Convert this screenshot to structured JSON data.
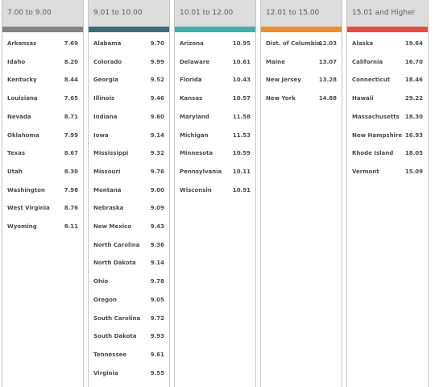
{
  "columns": [
    {
      "header": "7.00 to 9.00",
      "color": "#848484",
      "rows": [
        {
          "state": "Arkansas",
          "value": "7.69"
        },
        {
          "state": "Idaho",
          "value": "8.20"
        },
        {
          "state": "Kentucky",
          "value": "8.44"
        },
        {
          "state": "Louisiana",
          "value": "7.65"
        },
        {
          "state": "Nevada",
          "value": "8.71"
        },
        {
          "state": "Oklahoma",
          "value": "7.99"
        },
        {
          "state": "Texas",
          "value": "8.67"
        },
        {
          "state": "Utah",
          "value": "8.30"
        },
        {
          "state": "Washington",
          "value": "7.98"
        },
        {
          "state": "West Virginia",
          "value": "8.76"
        },
        {
          "state": "Wyoming",
          "value": "8.11"
        }
      ]
    },
    {
      "header": "9.01 to 10.00",
      "color": "#3e6b78",
      "rows": [
        {
          "state": "Alabama",
          "value": "9.70"
        },
        {
          "state": "Colorado",
          "value": "9.99"
        },
        {
          "state": "Georgia",
          "value": "9.52"
        },
        {
          "state": "Illinois",
          "value": "9.46"
        },
        {
          "state": "Indiana",
          "value": "9.60"
        },
        {
          "state": "Iowa",
          "value": "9.14"
        },
        {
          "state": "Mississippi",
          "value": "9.32"
        },
        {
          "state": "Missouri",
          "value": "9.76"
        },
        {
          "state": "Montana",
          "value": "9.00"
        },
        {
          "state": "Nebraska",
          "value": "9.09"
        },
        {
          "state": "New Mexico",
          "value": "9.43"
        },
        {
          "state": "North Carolina",
          "value": "9.36"
        },
        {
          "state": "North Dakota",
          "value": "9.14"
        },
        {
          "state": "Ohio",
          "value": "9.78"
        },
        {
          "state": "Oregon",
          "value": "9.05"
        },
        {
          "state": "South Carolina",
          "value": "9.72"
        },
        {
          "state": "South Dakota",
          "value": "9.93"
        },
        {
          "state": "Tennessee",
          "value": "9.61"
        },
        {
          "state": "Virginia",
          "value": "9.55"
        }
      ]
    },
    {
      "header": "10.01 to 12.00",
      "color": "#3bb0aa",
      "rows": [
        {
          "state": "Arizona",
          "value": "10.95"
        },
        {
          "state": "Delaware",
          "value": "10.61"
        },
        {
          "state": "Florida",
          "value": "10.43"
        },
        {
          "state": "Kansas",
          "value": "10.57"
        },
        {
          "state": "Maryland",
          "value": "11.58"
        },
        {
          "state": "Michigan",
          "value": "11.53"
        },
        {
          "state": "Minnesota",
          "value": "10.59"
        },
        {
          "state": "Pennsylvania",
          "value": "10.11"
        },
        {
          "state": "Wisconsin",
          "value": "10.91"
        }
      ]
    },
    {
      "header": "12.01 to 15.00",
      "color": "#e8922f",
      "rows": [
        {
          "state": "Dist. of Columbia",
          "value": "12.03"
        },
        {
          "state": "Maine",
          "value": "13.07"
        },
        {
          "state": "New Jersey",
          "value": "13.28"
        },
        {
          "state": "New York",
          "value": "14.88"
        }
      ]
    },
    {
      "header": "15.01 and Higher",
      "color": "#e84b42",
      "rows": [
        {
          "state": "Alaska",
          "value": "19.64"
        },
        {
          "state": "California",
          "value": "16.70"
        },
        {
          "state": "Connecticut",
          "value": "18.46"
        },
        {
          "state": "Hawaii",
          "value": "29.22"
        },
        {
          "state": "Massachusetts",
          "value": "18.30"
        },
        {
          "state": "New Hampshire",
          "value": "16.93"
        },
        {
          "state": "Rhode Island",
          "value": "18.05"
        },
        {
          "state": "Vermont",
          "value": "15.09"
        }
      ]
    }
  ]
}
